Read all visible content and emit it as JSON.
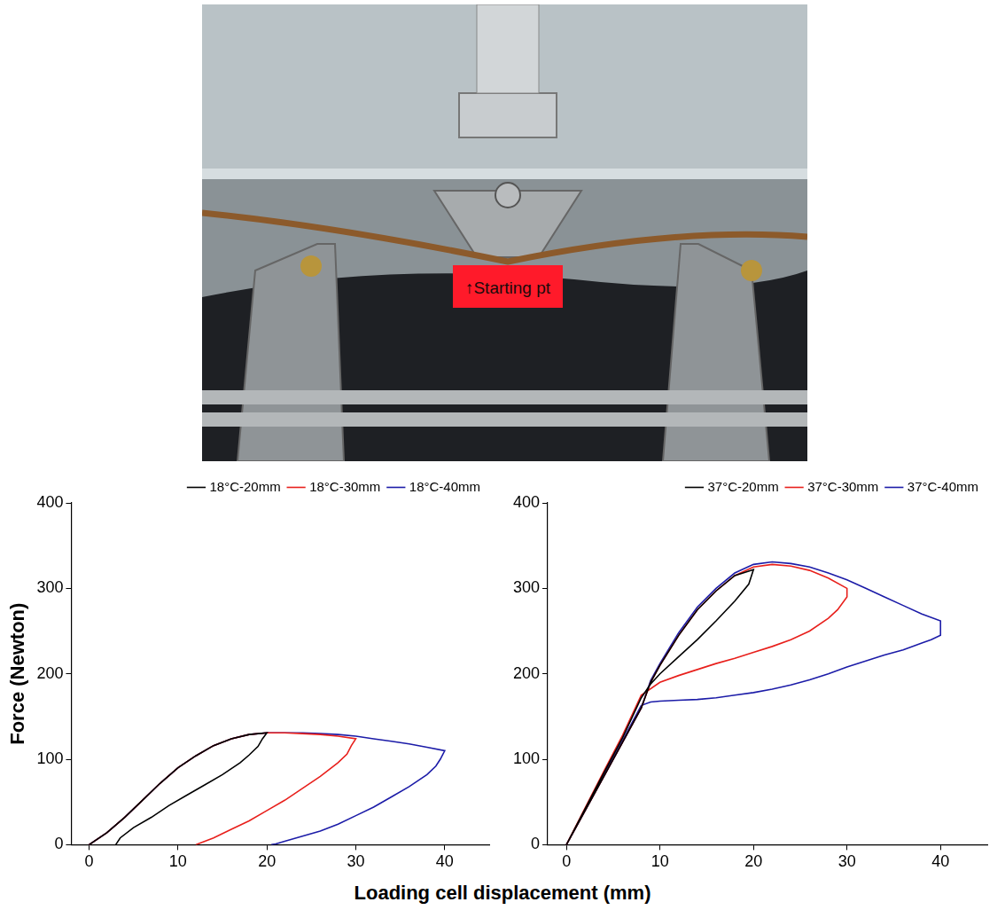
{
  "photo": {
    "label": "↑Starting pt"
  },
  "x_label": "Loading cell displacement (mm)",
  "chart_data": [
    {
      "type": "line",
      "y_label": "Force (Newton)",
      "xlim": [
        -2,
        45
      ],
      "xticks": [
        0,
        10,
        20,
        30,
        40
      ],
      "ylim": [
        0,
        400
      ],
      "yticks": [
        0,
        100,
        200,
        300,
        400
      ],
      "grid": false,
      "legend": "top right",
      "series": [
        {
          "name": "18°C-20mm",
          "color": "#000000",
          "x": [
            0,
            2,
            4,
            6,
            8,
            10,
            12,
            14,
            16,
            18,
            20,
            19.5,
            19,
            18,
            17,
            15,
            13,
            11,
            9,
            7,
            5,
            3.5,
            3
          ],
          "values": [
            0,
            14,
            32,
            52,
            72,
            90,
            104,
            116,
            124,
            129,
            131,
            124,
            115,
            105,
            96,
            82,
            70,
            58,
            46,
            32,
            20,
            8,
            0
          ]
        },
        {
          "name": "18°C-30mm",
          "color": "#e8201c",
          "x": [
            0,
            2,
            4,
            6,
            8,
            10,
            12,
            14,
            16,
            18,
            20,
            22,
            24,
            26,
            28,
            30,
            29.5,
            29,
            28,
            26,
            24,
            22,
            20,
            18,
            16,
            14,
            12.5,
            12
          ],
          "values": [
            0,
            14,
            32,
            52,
            72,
            90,
            104,
            116,
            124,
            129,
            131,
            131,
            130,
            129,
            127,
            124,
            116,
            106,
            96,
            80,
            66,
            52,
            40,
            28,
            18,
            8,
            2,
            0
          ]
        },
        {
          "name": "18°C-40mm",
          "color": "#1c1ca8",
          "x": [
            0,
            2,
            4,
            6,
            8,
            10,
            12,
            14,
            16,
            18,
            20,
            22,
            24,
            26,
            28,
            30,
            32,
            34,
            36,
            38,
            40,
            39.5,
            39,
            38,
            36,
            34,
            32,
            30,
            28,
            26,
            24,
            22,
            21,
            20.5
          ],
          "values": [
            0,
            14,
            32,
            52,
            72,
            90,
            104,
            116,
            124,
            129,
            131,
            131,
            131,
            130,
            129,
            127,
            124,
            121,
            118,
            114,
            110,
            100,
            92,
            82,
            68,
            56,
            44,
            34,
            24,
            16,
            10,
            4,
            1,
            0
          ]
        }
      ]
    },
    {
      "type": "line",
      "xlim": [
        -2,
        45
      ],
      "xticks": [
        0,
        10,
        20,
        30,
        40
      ],
      "ylim": [
        0,
        400
      ],
      "yticks": [
        0,
        100,
        200,
        300,
        400
      ],
      "grid": false,
      "legend": "top right",
      "series": [
        {
          "name": "37°C-20mm",
          "color": "#000000",
          "x": [
            0,
            2,
            4,
            6,
            8,
            9,
            10,
            12,
            14,
            16,
            18,
            20,
            19.5,
            18,
            16,
            14,
            12,
            10,
            9,
            8,
            6,
            4,
            2,
            0
          ],
          "values": [
            0,
            40,
            80,
            120,
            160,
            190,
            210,
            245,
            275,
            297,
            315,
            322,
            305,
            285,
            262,
            240,
            220,
            200,
            188,
            172,
            125,
            84,
            42,
            0
          ]
        },
        {
          "name": "37°C-30mm",
          "color": "#e8201c",
          "x": [
            0,
            2,
            4,
            6,
            8,
            9,
            10,
            12,
            14,
            16,
            18,
            20,
            22,
            24,
            26,
            28,
            30,
            30,
            29,
            28,
            26,
            24,
            22,
            20,
            18,
            16,
            14,
            12,
            10,
            8,
            6,
            4,
            2,
            0
          ],
          "values": [
            0,
            40,
            80,
            120,
            160,
            190,
            210,
            245,
            275,
            297,
            315,
            325,
            328,
            326,
            321,
            312,
            300,
            290,
            275,
            265,
            250,
            240,
            232,
            225,
            218,
            212,
            205,
            198,
            190,
            175,
            128,
            86,
            43,
            0
          ]
        },
        {
          "name": "37°C-40mm",
          "color": "#1c1ca8",
          "x": [
            0,
            2,
            4,
            6,
            8,
            9,
            10,
            12,
            14,
            16,
            18,
            20,
            22,
            24,
            26,
            28,
            30,
            32,
            34,
            36,
            38,
            40,
            40,
            39,
            38,
            36,
            34,
            32,
            30,
            28,
            26,
            24,
            22,
            20,
            18,
            16,
            14,
            12,
            10,
            9,
            8,
            6,
            4,
            2,
            0
          ],
          "values": [
            0,
            40,
            80,
            120,
            160,
            192,
            212,
            248,
            278,
            300,
            318,
            328,
            331,
            329,
            325,
            318,
            310,
            300,
            290,
            280,
            270,
            262,
            245,
            240,
            236,
            228,
            222,
            215,
            208,
            200,
            193,
            187,
            182,
            178,
            175,
            172,
            170,
            169,
            168,
            167,
            163,
            122,
            82,
            41,
            0
          ]
        }
      ]
    }
  ]
}
